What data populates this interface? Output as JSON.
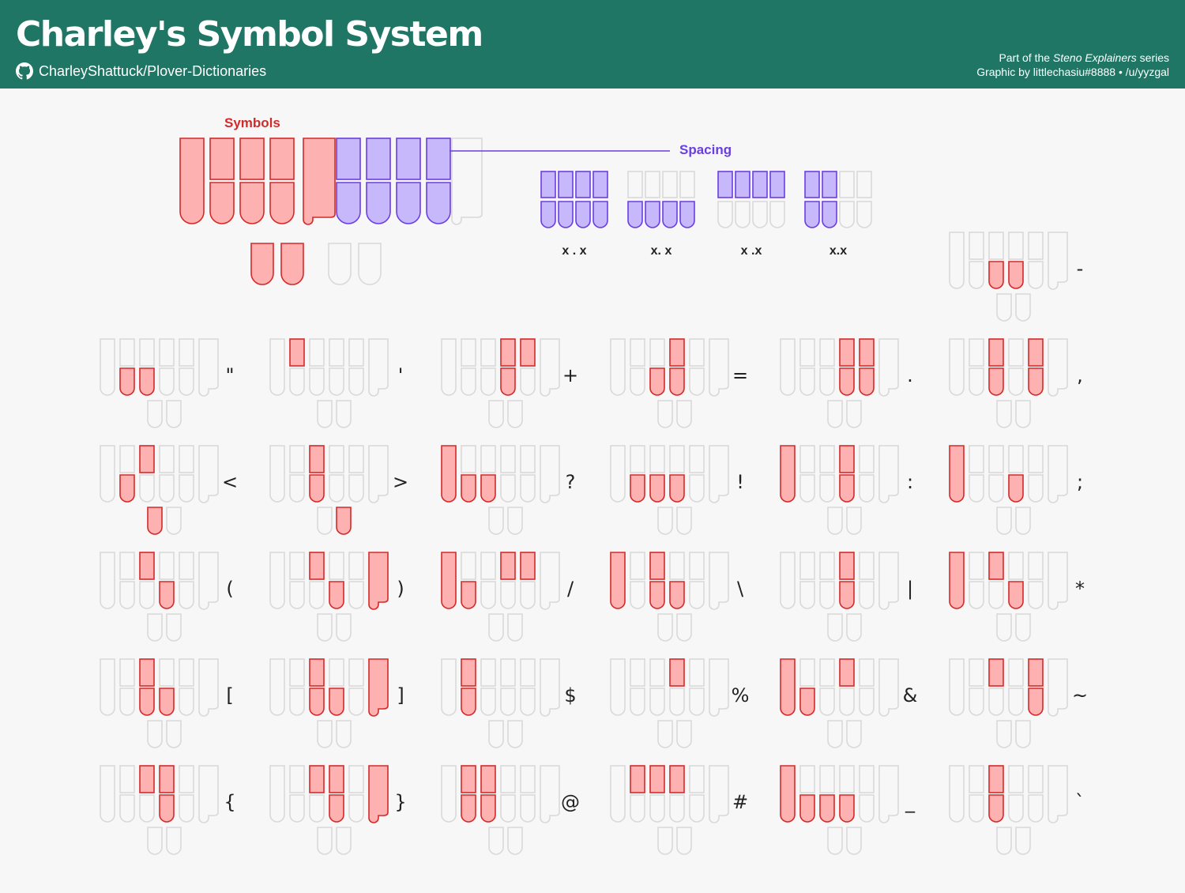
{
  "header": {
    "title": "Charley's Symbol System",
    "repo": "CharleyShattuck/Plover-Dictionaries",
    "credit_prefix": "Part of the ",
    "credit_series": "Steno Explainers",
    "credit_suffix": " series",
    "credit_line2": "Graphic by littlechasiu#8888 • /u/yyzgal"
  },
  "legend": {
    "symbols_label": "Symbols",
    "spacing_label": "Spacing",
    "symbol_keys": [
      "S",
      "T",
      "K",
      "P",
      "W",
      "H",
      "R",
      "A",
      "O",
      "*"
    ],
    "spacing_keys": [
      "E",
      "U",
      "F",
      "R",
      "P",
      "B",
      "L",
      "G",
      "T",
      "S",
      "D",
      "Z"
    ],
    "spacing_examples": [
      {
        "text": "x . x",
        "keys": [
          "F",
          "R",
          "P",
          "B",
          "L",
          "G",
          "T",
          "S"
        ]
      },
      {
        "text": "x. x",
        "keys": [
          "R",
          "B",
          "G",
          "S"
        ]
      },
      {
        "text": "x .x",
        "keys": [
          "F",
          "P",
          "L",
          "T"
        ]
      },
      {
        "text": "x.x",
        "keys": [
          "F",
          "R",
          "P",
          "B"
        ]
      }
    ]
  },
  "colors": {
    "header_bg": "#1f7664",
    "symbol_fill": "#fdb1b1",
    "symbol_stroke": "#d42a2a",
    "spacing_fill": "#c6b8fb",
    "spacing_stroke": "#6a3fe0",
    "inactive_stroke": "#d9d9d9"
  },
  "symbols": [
    {
      "symbol": "-",
      "keys": [
        "B",
        "G"
      ]
    },
    {
      "symbol": "\"",
      "keys": [
        "R",
        "B"
      ]
    },
    {
      "symbol": "'",
      "keys": [
        "F"
      ]
    },
    {
      "symbol": "+",
      "keys": [
        "L",
        "G",
        "T"
      ]
    },
    {
      "symbol": "=",
      "keys": [
        "B",
        "L",
        "G"
      ]
    },
    {
      "symbol": ".",
      "keys": [
        "L",
        "T",
        "G",
        "S"
      ]
    },
    {
      "symbol": ",",
      "keys": [
        "P",
        "B",
        "T",
        "S"
      ]
    },
    {
      "symbol": "<",
      "keys": [
        "P",
        "R",
        "E"
      ]
    },
    {
      "symbol": ">",
      "keys": [
        "P",
        "B",
        "U"
      ]
    },
    {
      "symbol": "?",
      "keys": [
        "-F",
        "R",
        "B"
      ]
    },
    {
      "symbol": "!",
      "keys": [
        "R",
        "B",
        "G"
      ]
    },
    {
      "symbol": ":",
      "keys": [
        "-F",
        "L",
        "G"
      ]
    },
    {
      "symbol": ";",
      "keys": [
        "-F",
        "G"
      ]
    },
    {
      "symbol": "(",
      "keys": [
        "P",
        "G"
      ]
    },
    {
      "symbol": ")",
      "keys": [
        "P",
        "G",
        "-T"
      ]
    },
    {
      "symbol": "/",
      "keys": [
        "-F",
        "L",
        "T",
        "R"
      ]
    },
    {
      "symbol": "\\",
      "keys": [
        "-F",
        "P",
        "B",
        "G"
      ]
    },
    {
      "symbol": "|",
      "keys": [
        "L",
        "G"
      ]
    },
    {
      "symbol": "*",
      "keys": [
        "-F",
        "P",
        "G"
      ]
    },
    {
      "symbol": "[",
      "keys": [
        "P",
        "B",
        "G"
      ]
    },
    {
      "symbol": "]",
      "keys": [
        "P",
        "B",
        "G",
        "-T"
      ]
    },
    {
      "symbol": "$",
      "keys": [
        "F",
        "R"
      ]
    },
    {
      "symbol": "%",
      "keys": [
        "L"
      ]
    },
    {
      "symbol": "&",
      "keys": [
        "-F",
        "R",
        "L"
      ]
    },
    {
      "symbol": "~",
      "keys": [
        "P",
        "T",
        "S"
      ]
    },
    {
      "symbol": "{",
      "keys": [
        "P",
        "L",
        "G"
      ]
    },
    {
      "symbol": "}",
      "keys": [
        "P",
        "L",
        "G",
        "-T"
      ]
    },
    {
      "symbol": "@",
      "keys": [
        "F",
        "P",
        "R",
        "B"
      ]
    },
    {
      "symbol": "#",
      "keys": [
        "F",
        "P",
        "L"
      ]
    },
    {
      "symbol": "_",
      "keys": [
        "-F",
        "R",
        "B",
        "G"
      ]
    },
    {
      "symbol": "`",
      "keys": [
        "P",
        "B"
      ]
    }
  ]
}
